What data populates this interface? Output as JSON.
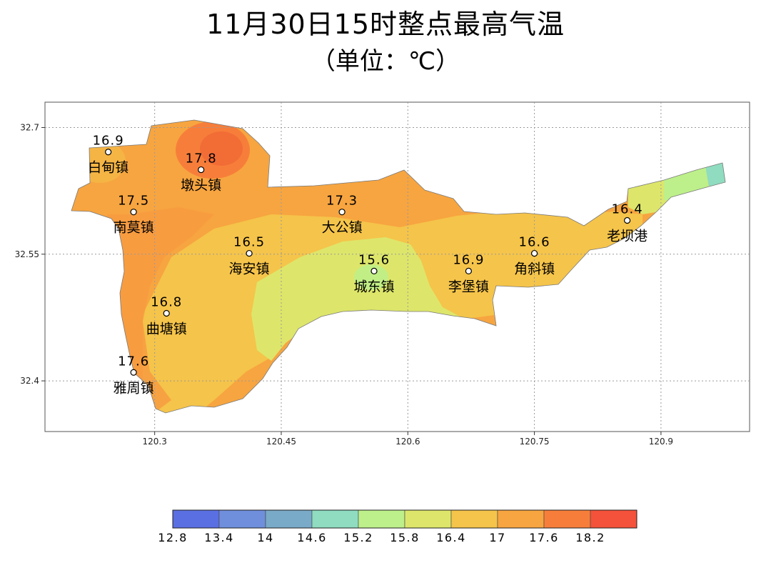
{
  "header": {
    "title": "11月30日15时整点最高气温",
    "subtitle": "（单位：℃）"
  },
  "axes": {
    "x_ticks": [
      "120.3",
      "120.45",
      "120.6",
      "120.75",
      "120.9"
    ],
    "y_ticks": [
      "32.7",
      "32.55",
      "32.4"
    ],
    "xlim": [
      120.17,
      121.005
    ],
    "ylim": [
      32.34,
      32.73
    ]
  },
  "stations": [
    {
      "name": "白甸镇",
      "temp": "16.9",
      "lon": 120.245,
      "lat": 32.671
    },
    {
      "name": "墩头镇",
      "temp": "17.8",
      "lon": 120.355,
      "lat": 32.65
    },
    {
      "name": "南莫镇",
      "temp": "17.5",
      "lon": 120.275,
      "lat": 32.6
    },
    {
      "name": "大公镇",
      "temp": "17.3",
      "lon": 120.522,
      "lat": 32.6
    },
    {
      "name": "老坝港",
      "temp": "16.4",
      "lon": 120.86,
      "lat": 32.59
    },
    {
      "name": "海安镇",
      "temp": "16.5",
      "lon": 120.412,
      "lat": 32.551
    },
    {
      "name": "角斜镇",
      "temp": "16.6",
      "lon": 120.75,
      "lat": 32.551
    },
    {
      "name": "城东镇",
      "temp": "15.6",
      "lon": 120.56,
      "lat": 32.53
    },
    {
      "name": "李堡镇",
      "temp": "16.9",
      "lon": 120.672,
      "lat": 32.53
    },
    {
      "name": "曲塘镇",
      "temp": "16.8",
      "lon": 120.314,
      "lat": 32.48
    },
    {
      "name": "雅周镇",
      "temp": "17.6",
      "lon": 120.275,
      "lat": 32.41
    }
  ],
  "legend": {
    "labels": [
      "12.8",
      "13.4",
      "14",
      "14.6",
      "15.2",
      "15.8",
      "16.4",
      "17",
      "17.6",
      "18.2"
    ],
    "colors": [
      "#5a6fe2",
      "#6f8fdc",
      "#79aac8",
      "#8fdcc0",
      "#bdf08a",
      "#dde66a",
      "#f5c44a",
      "#f7a540",
      "#f77e3a",
      "#f4523a"
    ]
  }
}
